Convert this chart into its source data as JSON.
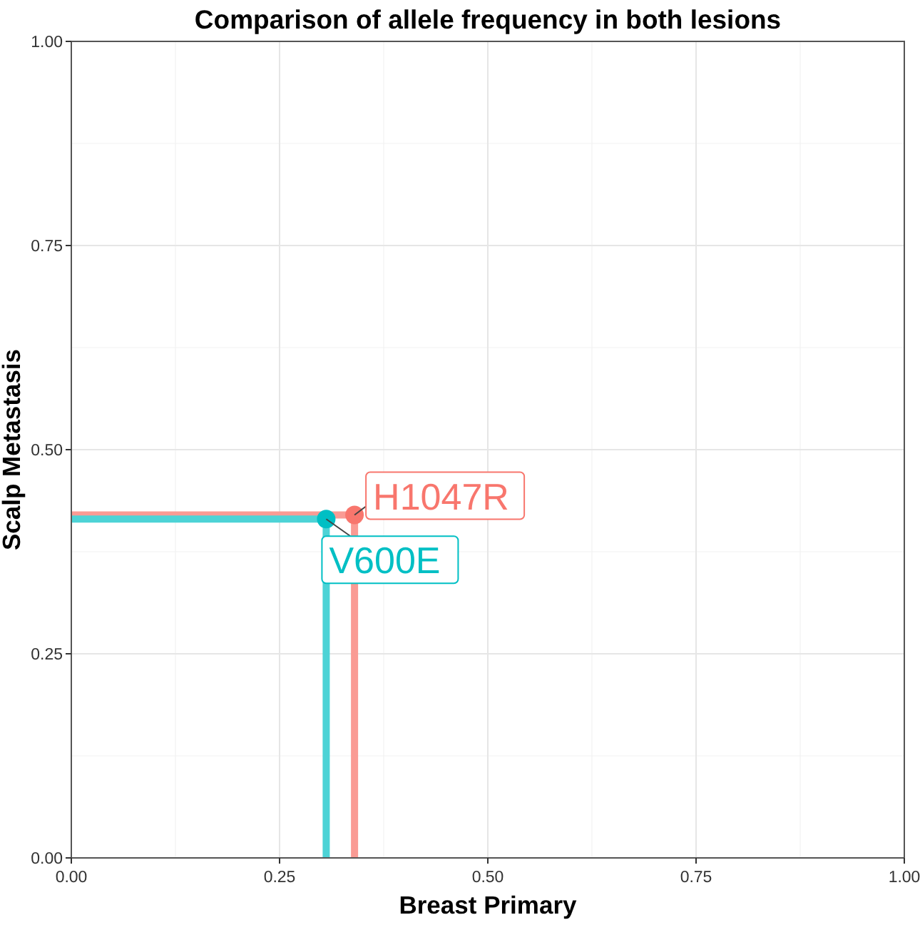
{
  "chart_data": {
    "type": "scatter",
    "title": "Comparison of allele frequency in both lesions",
    "xlabel": "Breast Primary",
    "ylabel": "Scalp Metastasis",
    "xlim": [
      0,
      1
    ],
    "ylim": [
      0,
      1
    ],
    "xticks": [
      {
        "value": 0,
        "label": "0.00"
      },
      {
        "value": 0.25,
        "label": "0.25"
      },
      {
        "value": 0.5,
        "label": "0.50"
      },
      {
        "value": 0.75,
        "label": "0.75"
      },
      {
        "value": 1,
        "label": "1.00"
      }
    ],
    "yticks": [
      {
        "value": 0,
        "label": "0.00"
      },
      {
        "value": 0.25,
        "label": "0.25"
      },
      {
        "value": 0.5,
        "label": "0.50"
      },
      {
        "value": 0.75,
        "label": "0.75"
      },
      {
        "value": 1,
        "label": "1.00"
      }
    ],
    "grid": true,
    "legend": false,
    "marker": "circle",
    "series": [
      {
        "type": "line",
        "marker": "none",
        "color": "#fa9b94",
        "x": [
          0,
          0.34,
          0.34
        ],
        "values": [
          0.42,
          0.42,
          0
        ]
      },
      {
        "type": "line",
        "marker": "none",
        "color": "#4dd3d6",
        "x": [
          0,
          0.306,
          0.306
        ],
        "values": [
          0.415,
          0.415,
          0
        ]
      },
      {
        "name": "H1047R",
        "color": "#f8766d",
        "x": [
          0.34
        ],
        "values": [
          0.42
        ]
      },
      {
        "name": "V600E",
        "color": "#00bfc4",
        "x": [
          0.306
        ],
        "values": [
          0.415
        ]
      }
    ]
  }
}
